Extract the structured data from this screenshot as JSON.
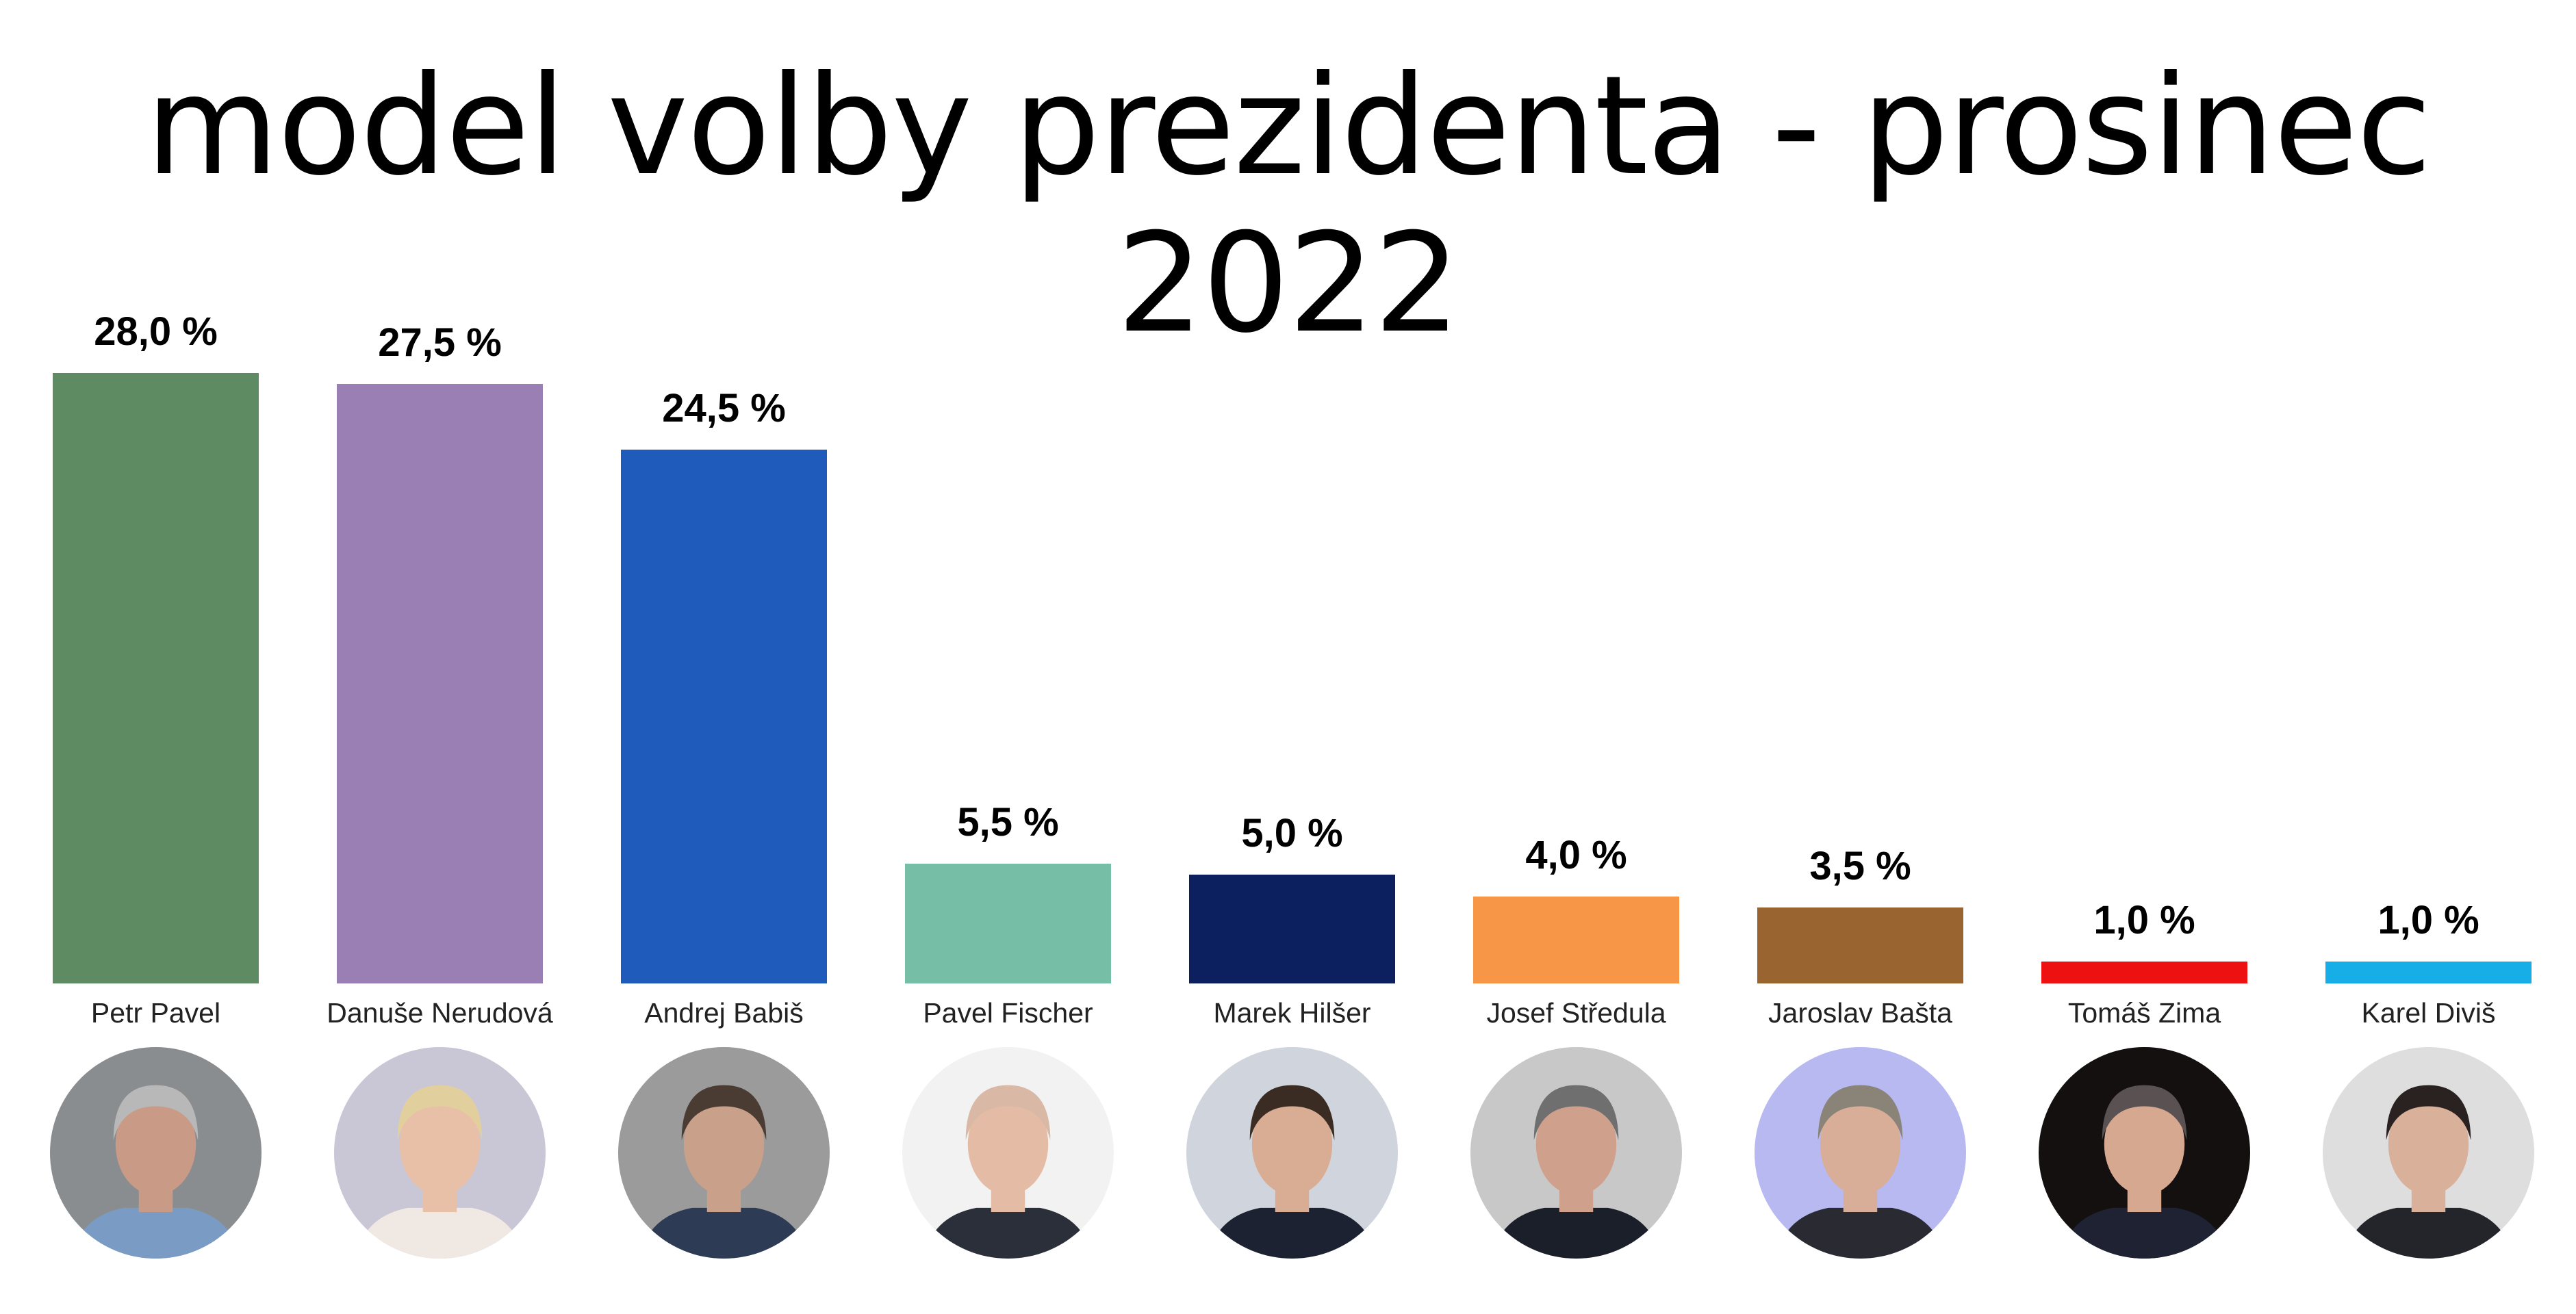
{
  "title": "model volby prezidenta - prosinec 2022",
  "candidates": [
    {
      "name": "Petr Pavel",
      "value_label": "28,0 %",
      "color": "#5e8b62",
      "photo_bg": "#8a8d90",
      "hair": "#b8b8b8",
      "skin": "#c99b86",
      "suit": "#7a9cc4"
    },
    {
      "name": "Danuše Nerudová",
      "value_label": "27,5 %",
      "color": "#9a7fb5",
      "photo_bg": "#c9c6d6",
      "hair": "#e2cf9e",
      "skin": "#e8c0a8",
      "suit": "#f0e8e2"
    },
    {
      "name": "Andrej Babiš",
      "value_label": "24,5 %",
      "color": "#1f5bbb",
      "photo_bg": "#9b9b9b",
      "hair": "#4a3b33",
      "skin": "#c9a08a",
      "suit": "#2e3b55"
    },
    {
      "name": "Pavel Fischer",
      "value_label": "5,5 %",
      "color": "#76bea5",
      "photo_bg": "#f2f2f2",
      "hair": "#d9b9a5",
      "skin": "#e4bca6",
      "suit": "#2a2f3a"
    },
    {
      "name": "Marek Hilšer",
      "value_label": "5,0 %",
      "color": "#0c1f5e",
      "photo_bg": "#d0d4dc",
      "hair": "#3a2c22",
      "skin": "#d8ad93",
      "suit": "#1c2232"
    },
    {
      "name": "Josef Středula",
      "value_label": "4,0 %",
      "color": "#f79646",
      "photo_bg": "#c8c8c8",
      "hair": "#6f6f6f",
      "skin": "#cfa18c",
      "suit": "#1a1f2a"
    },
    {
      "name": "Jaroslav Bašta",
      "value_label": "3,5 %",
      "color": "#99642f",
      "photo_bg": "#b7b9f0",
      "hair": "#8a8378",
      "skin": "#d8ae98",
      "suit": "#2a2a33"
    },
    {
      "name": "Tomáš Zima",
      "value_label": "1,0 %",
      "color": "#ee1111",
      "photo_bg": "#141010",
      "hair": "#5a5252",
      "skin": "#d6a890",
      "suit": "#1e2233"
    },
    {
      "name": "Karel Diviš",
      "value_label": "1,0 %",
      "color": "#17aee8",
      "photo_bg": "#dedede",
      "hair": "#2a2220",
      "skin": "#d9b09a",
      "suit": "#23252b"
    }
  ],
  "chart_data": {
    "type": "bar",
    "title": "model volby prezidenta - prosinec 2022",
    "categories": [
      "Petr Pavel",
      "Danuše Nerudová",
      "Andrej Babiš",
      "Pavel Fischer",
      "Marek Hilšer",
      "Josef Středula",
      "Jaroslav Bašta",
      "Tomáš Zima",
      "Karel Diviš"
    ],
    "values": [
      28.0,
      27.5,
      24.5,
      5.5,
      5.0,
      4.0,
      3.5,
      1.0,
      1.0
    ],
    "value_labels": [
      "28,0 %",
      "27,5 %",
      "24,5 %",
      "5,5 %",
      "5,0 %",
      "4,0 %",
      "3,5 %",
      "1,0 %",
      "1,0 %"
    ],
    "colors": [
      "#5e8b62",
      "#9a7fb5",
      "#1f5bbb",
      "#76bea5",
      "#0c1f5e",
      "#f79646",
      "#99642f",
      "#ee1111",
      "#17aee8"
    ],
    "xlabel": "",
    "ylabel": "%",
    "ylim": [
      0,
      30
    ],
    "grid": false,
    "legend": "none; candidate names below bars with portrait photos"
  }
}
